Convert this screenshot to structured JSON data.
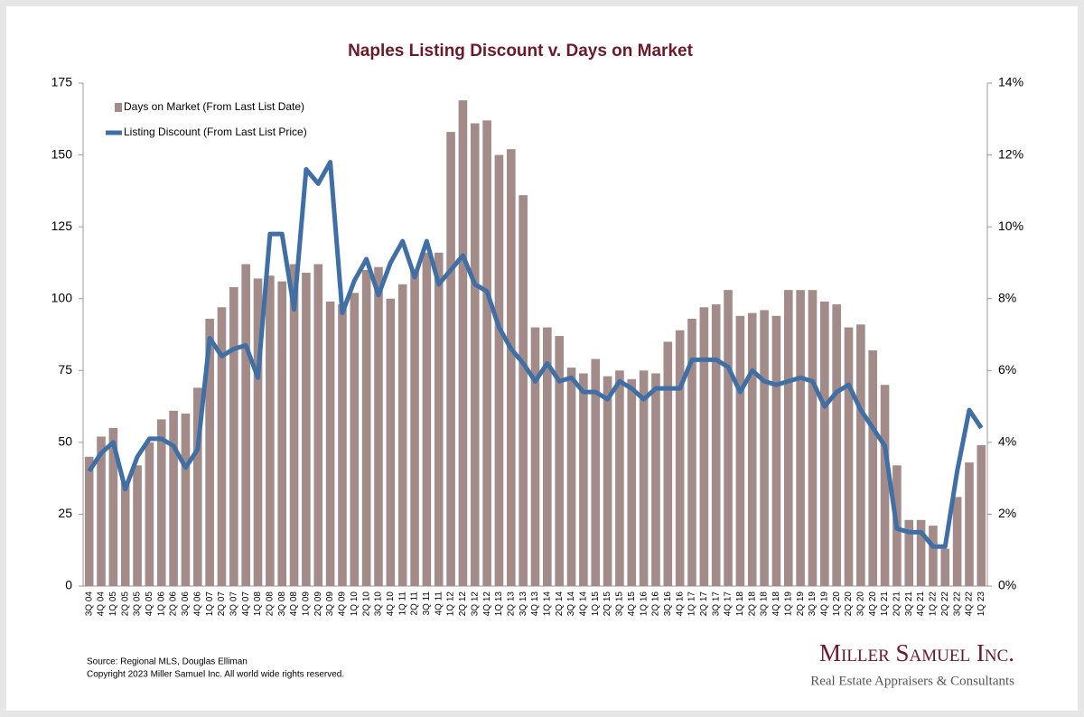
{
  "chart_data": {
    "type": "bar_line",
    "title": "Naples Listing Discount v. Days on Market",
    "categories": [
      "3Q 04",
      "4Q 04",
      "1Q 05",
      "2Q 05",
      "3Q 05",
      "4Q 05",
      "1Q 06",
      "2Q 06",
      "3Q 06",
      "4Q 06",
      "1Q 07",
      "2Q 07",
      "3Q 07",
      "4Q 07",
      "1Q 08",
      "2Q 08",
      "3Q 08",
      "4Q 08",
      "1Q 09",
      "2Q 09",
      "3Q 09",
      "4Q 09",
      "1Q 10",
      "2Q 10",
      "3Q 10",
      "4Q 10",
      "1Q 11",
      "2Q 11",
      "3Q 11",
      "4Q 11",
      "1Q 12",
      "2Q 12",
      "3Q 12",
      "4Q 12",
      "1Q 13",
      "2Q 13",
      "3Q 13",
      "4Q 13",
      "1Q 14",
      "2Q 14",
      "3Q 14",
      "4Q 14",
      "1Q 15",
      "2Q 15",
      "3Q 15",
      "4Q 15",
      "1Q 16",
      "2Q 16",
      "3Q 16",
      "4Q 16",
      "1Q 17",
      "2Q 17",
      "3Q 17",
      "4Q 17",
      "1Q 18",
      "2Q 18",
      "3Q 18",
      "4Q 18",
      "1Q 19",
      "2Q 19",
      "3Q 19",
      "4Q 19",
      "1Q 20",
      "2Q 20",
      "3Q 20",
      "4Q 20",
      "1Q 21",
      "2Q 21",
      "3Q 21",
      "4Q 21",
      "1Q 22",
      "2Q 22",
      "3Q 22",
      "4Q 22",
      "1Q 23"
    ],
    "series": [
      {
        "name": "Days on Market (From Last List Date)",
        "color": "#a28b89",
        "type": "bar",
        "values": [
          45,
          52,
          55,
          36,
          42,
          50,
          58,
          61,
          60,
          69,
          93,
          97,
          104,
          112,
          107,
          108,
          106,
          112,
          109,
          112,
          99,
          98,
          102,
          110,
          111,
          100,
          105,
          110,
          116,
          116,
          158,
          169,
          161,
          162,
          150,
          152,
          136,
          90,
          90,
          87,
          76,
          74,
          79,
          73,
          75,
          72,
          75,
          74,
          85,
          89,
          93,
          97,
          98,
          103,
          94,
          95,
          96,
          94,
          103,
          103,
          103,
          99,
          98,
          90,
          91,
          82,
          70,
          42,
          23,
          23,
          21,
          13,
          31,
          43,
          49
        ]
      },
      {
        "name": "Listing Discount (From Last List Price)",
        "color": "#3f6fa4",
        "type": "line",
        "axis": "y2",
        "values": [
          3.2,
          3.7,
          4.0,
          2.7,
          3.6,
          4.1,
          4.1,
          3.9,
          3.3,
          3.8,
          6.9,
          6.4,
          6.6,
          6.7,
          5.8,
          9.8,
          9.8,
          7.7,
          11.6,
          11.2,
          11.8,
          7.6,
          8.5,
          9.1,
          8.1,
          9.0,
          9.6,
          8.6,
          9.6,
          8.4,
          8.8,
          9.2,
          8.4,
          8.2,
          7.2,
          6.6,
          6.2,
          5.7,
          6.2,
          5.7,
          5.8,
          5.4,
          5.4,
          5.2,
          5.7,
          5.5,
          5.2,
          5.5,
          5.5,
          5.5,
          6.3,
          6.3,
          6.3,
          6.1,
          5.4,
          6.0,
          5.7,
          5.6,
          5.7,
          5.8,
          5.7,
          5.0,
          5.4,
          5.6,
          4.9,
          4.4,
          3.9,
          1.6,
          1.5,
          1.5,
          1.1,
          1.1,
          3.2,
          4.9,
          4.4
        ]
      }
    ],
    "ylim": [
      0,
      175
    ],
    "yticks": [
      0,
      25,
      50,
      75,
      100,
      125,
      150,
      175
    ],
    "y2lim": [
      0,
      14
    ],
    "y2ticks": [
      {
        "value": 0,
        "label": "0%"
      },
      {
        "value": 2,
        "label": "2%"
      },
      {
        "value": 4,
        "label": "4%"
      },
      {
        "value": 6,
        "label": "6%"
      },
      {
        "value": 8,
        "label": "8%"
      },
      {
        "value": 10,
        "label": "10%"
      },
      {
        "value": 12,
        "label": "12%"
      },
      {
        "value": 14,
        "label": "14%"
      }
    ],
    "legend": "top-left",
    "grid": false
  },
  "footer": {
    "source": "Source: Regional MLS, Douglas Elliman",
    "copyright": "Copyright 2023 Miller Samuel Inc.  All world wide rights reserved.",
    "logo": "Miller Samuel Inc.",
    "tagline": "Real Estate Appraisers & Consultants"
  }
}
